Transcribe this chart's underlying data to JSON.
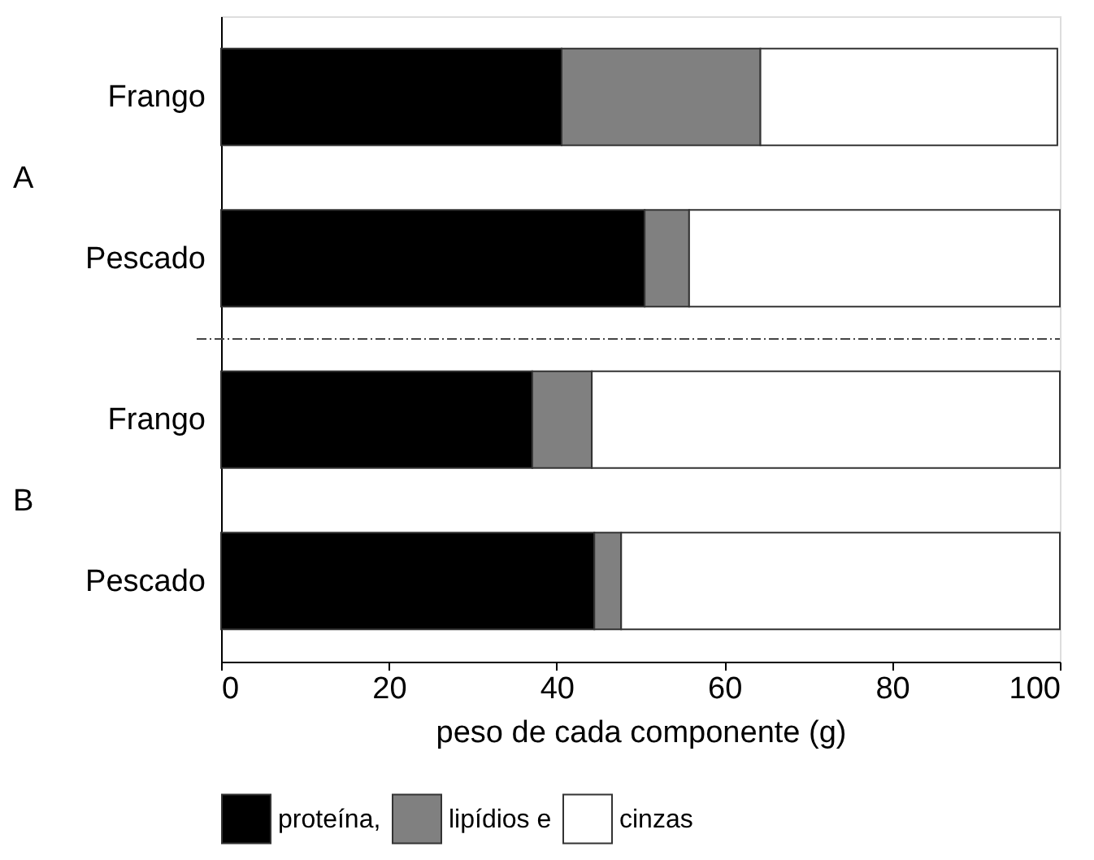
{
  "chart_data": {
    "type": "bar",
    "orientation": "horizontal",
    "stacked": true,
    "xlabel": "peso de cada componente (g)",
    "categories": [
      "Frango",
      "Pescado",
      "Frango",
      "Pescado"
    ],
    "series": [
      {
        "name": "proteína,",
        "color": "#000000",
        "values": [
          40.6,
          50.5,
          37.1,
          44.5
        ]
      },
      {
        "name": "lipídios e",
        "color": "#808080",
        "values": [
          23.7,
          5.3,
          7.1,
          3.2
        ]
      },
      {
        "name": "cinzas",
        "color": "#ffffff",
        "values": [
          35.4,
          44.2,
          55.8,
          52.3
        ]
      }
    ],
    "annotations": [
      "A",
      "B"
    ],
    "xlim": [
      0,
      100
    ],
    "xticks": [
      0,
      20,
      40,
      60,
      80,
      100
    ],
    "grid": false,
    "legend": "bottom"
  }
}
